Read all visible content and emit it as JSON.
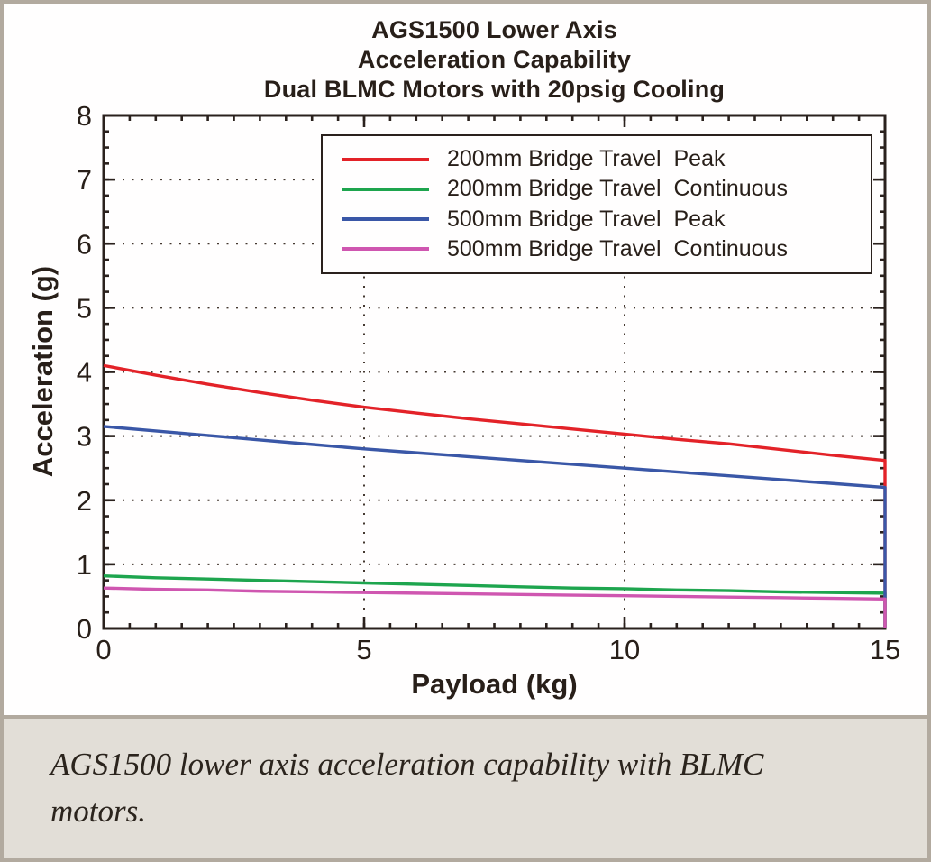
{
  "figure": {
    "caption": "AGS1500 lower axis acceleration capability with BLMC motors."
  },
  "colors": {
    "frame_border": "#b2aa9f",
    "chart_background": "#fffefe",
    "caption_background": "#e2ded7",
    "axis_and_text": "#281f19",
    "grid_dots": "#453931"
  },
  "chart_data": {
    "type": "line",
    "title_lines": [
      "AGS1500 Lower Axis",
      "Acceleration Capability",
      "Dual BLMC Motors with 20psig Cooling"
    ],
    "xlabel": "Payload (kg)",
    "ylabel": "Acceleration (g)",
    "xlim": [
      0,
      15
    ],
    "ylim": [
      0,
      8
    ],
    "x_ticks": [
      0,
      5,
      10,
      15
    ],
    "y_ticks": [
      0,
      1,
      2,
      3,
      4,
      5,
      6,
      7,
      8
    ],
    "x_minor_step": 0.5,
    "y_minor_step": 0.25,
    "grid": "dotted lines at major ticks",
    "legend_position": "upper center, inside plot box",
    "x": [
      0,
      1,
      2,
      3,
      4,
      5,
      6,
      7,
      8,
      9,
      10,
      11,
      12,
      13,
      14,
      15
    ],
    "series": [
      {
        "name": "200mm Bridge Travel  Peak",
        "color": "#e32228",
        "values": [
          4.1,
          3.95,
          3.81,
          3.68,
          3.56,
          3.45,
          3.36,
          3.27,
          3.19,
          3.11,
          3.03,
          2.95,
          2.88,
          2.79,
          2.7,
          2.62
        ],
        "drops_to_zero_at_end": true
      },
      {
        "name": "200mm Bridge Travel  Continuous",
        "color": "#1ea54e",
        "values": [
          0.82,
          0.79,
          0.77,
          0.75,
          0.73,
          0.71,
          0.69,
          0.67,
          0.65,
          0.63,
          0.62,
          0.6,
          0.59,
          0.57,
          0.56,
          0.55
        ],
        "drops_to_zero_at_end": true
      },
      {
        "name": "500mm Bridge Travel  Peak",
        "color": "#3a57a7",
        "values": [
          3.15,
          3.08,
          3.01,
          2.94,
          2.87,
          2.8,
          2.74,
          2.68,
          2.62,
          2.56,
          2.5,
          2.44,
          2.38,
          2.32,
          2.26,
          2.2
        ],
        "drops_to_zero_at_end": true
      },
      {
        "name": "500mm Bridge Travel  Continuous",
        "color": "#cf56b0",
        "values": [
          0.63,
          0.61,
          0.6,
          0.58,
          0.57,
          0.56,
          0.55,
          0.54,
          0.53,
          0.52,
          0.51,
          0.5,
          0.49,
          0.48,
          0.47,
          0.46
        ],
        "drops_to_zero_at_end": true
      }
    ]
  }
}
